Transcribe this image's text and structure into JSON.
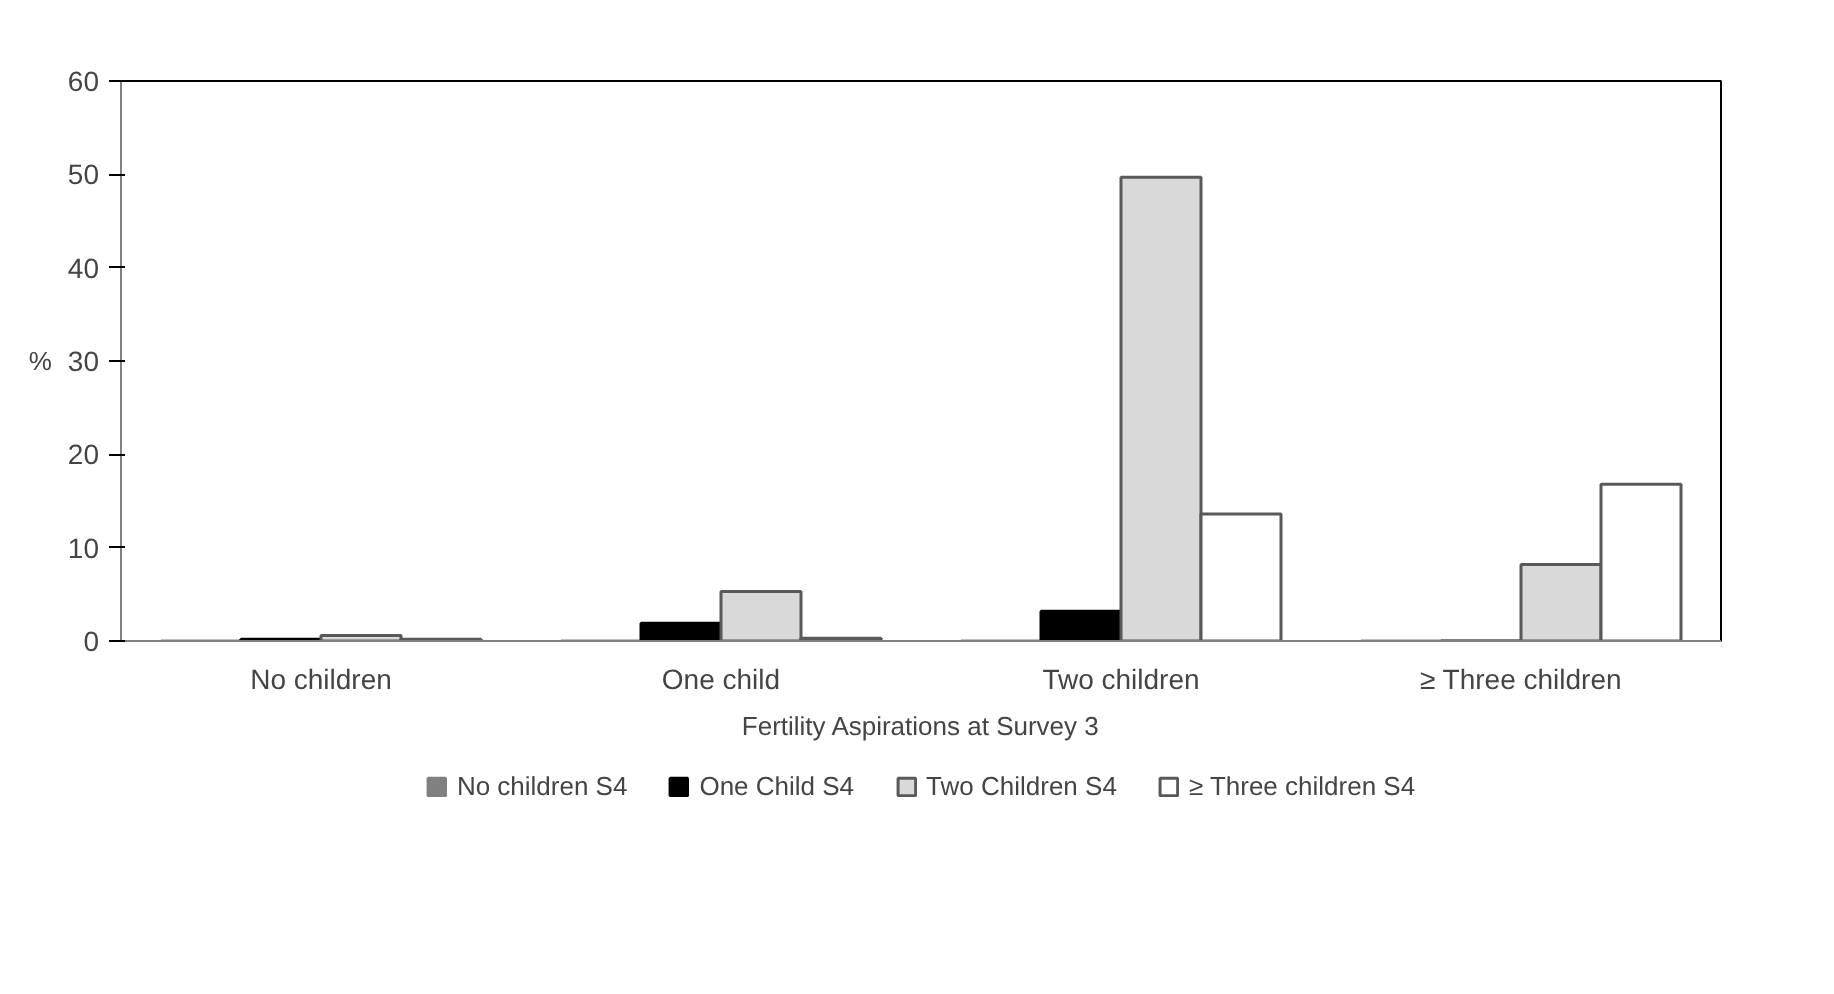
{
  "chart_data": {
    "type": "bar",
    "xlabel": "Fertility Aspirations at Survey 3",
    "ylabel": "%",
    "categories": [
      "No children",
      "One child",
      "Two children",
      "≥ Three children"
    ],
    "series": [
      {
        "name": "No children S4",
        "color": "#808080",
        "values": [
          0,
          0,
          0,
          0
        ]
      },
      {
        "name": "One Child S4",
        "color": "#000000",
        "values": [
          0.2,
          1.9,
          3.2,
          0
        ]
      },
      {
        "name": "Two Children S4",
        "color": "#d9d9d9",
        "values": [
          0.6,
          5.3,
          49.7,
          8.2
        ]
      },
      {
        "name": "≥ Three children S4",
        "color": "#ffffff",
        "values": [
          0.2,
          0.3,
          13.6,
          16.8
        ]
      }
    ],
    "ylim": [
      0,
      60
    ],
    "yticks": [
      0,
      10,
      20,
      30,
      40,
      50,
      60
    ],
    "grid": false,
    "legend": "bottom"
  }
}
